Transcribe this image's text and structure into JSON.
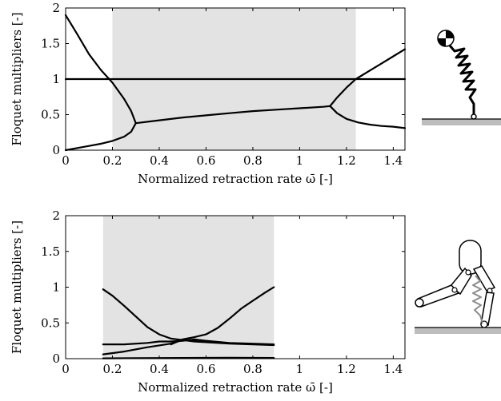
{
  "chart_data": [
    {
      "type": "line",
      "xlabel": "Normalized retraction rate ω̄ [-]",
      "ylabel": "Floquet multipliers [-]",
      "xlim": [
        0,
        1.45
      ],
      "ylim": [
        0,
        2
      ],
      "xticks": [
        "0",
        "0.2",
        "0.4",
        "0.6",
        "0.8",
        "1",
        "1.2",
        "1.4"
      ],
      "yticks": [
        "0",
        "0.5",
        "1",
        "1.5",
        "2"
      ],
      "shaded_region": [
        0.2,
        1.24
      ],
      "series": [
        {
          "x": [
            0,
            1.45
          ],
          "y": [
            1,
            1
          ]
        },
        {
          "x": [
            0,
            0.05,
            0.1,
            0.15,
            0.2,
            0.25,
            0.28,
            0.3
          ],
          "y": [
            1.9,
            1.63,
            1.35,
            1.13,
            0.95,
            0.72,
            0.55,
            0.38
          ]
        },
        {
          "x": [
            0,
            0.05,
            0.1,
            0.15,
            0.2,
            0.25,
            0.28,
            0.3
          ],
          "y": [
            0.0,
            0.03,
            0.06,
            0.09,
            0.13,
            0.19,
            0.26,
            0.38
          ]
        },
        {
          "x": [
            0.3,
            0.4,
            0.5,
            0.6,
            0.7,
            0.8,
            0.9,
            1.0,
            1.1,
            1.13
          ],
          "y": [
            0.38,
            0.42,
            0.46,
            0.49,
            0.52,
            0.55,
            0.57,
            0.59,
            0.61,
            0.62
          ]
        },
        {
          "x": [
            1.13,
            1.16,
            1.2,
            1.24,
            1.3,
            1.35,
            1.4,
            1.45
          ],
          "y": [
            0.62,
            0.74,
            0.88,
            1.0,
            1.12,
            1.22,
            1.32,
            1.42
          ]
        },
        {
          "x": [
            1.13,
            1.16,
            1.2,
            1.25,
            1.3,
            1.35,
            1.4,
            1.45
          ],
          "y": [
            0.62,
            0.52,
            0.44,
            0.39,
            0.36,
            0.34,
            0.33,
            0.31
          ]
        }
      ]
    },
    {
      "type": "line",
      "xlabel": "Normalized retraction rate ω̄ [-]",
      "ylabel": "Floquet multipliers [-]",
      "xlim": [
        0,
        1.45
      ],
      "ylim": [
        0,
        2
      ],
      "xticks": [
        "0",
        "0.2",
        "0.4",
        "0.6",
        "0.8",
        "1",
        "1.2",
        "1.4"
      ],
      "yticks": [
        "0",
        "0.5",
        "1",
        "1.5",
        "2"
      ],
      "shaded_region": [
        0.16,
        0.89
      ],
      "series": [
        {
          "x": [
            0.16,
            0.2,
            0.25,
            0.3,
            0.35,
            0.4,
            0.45,
            0.5,
            0.55,
            0.6
          ],
          "y": [
            0.97,
            0.88,
            0.74,
            0.59,
            0.44,
            0.34,
            0.28,
            0.26,
            0.25,
            0.24
          ]
        },
        {
          "x": [
            0.45,
            0.5,
            0.55,
            0.6,
            0.65,
            0.7,
            0.75,
            0.8,
            0.85,
            0.89
          ],
          "y": [
            0.2,
            0.27,
            0.3,
            0.34,
            0.43,
            0.56,
            0.7,
            0.81,
            0.92,
            1.0
          ]
        },
        {
          "x": [
            0.16,
            0.25,
            0.35,
            0.4,
            0.45,
            0.5,
            0.55,
            0.6,
            0.7,
            0.8,
            0.89
          ],
          "y": [
            0.2,
            0.2,
            0.22,
            0.24,
            0.24,
            0.25,
            0.27,
            0.25,
            0.22,
            0.21,
            0.2
          ]
        },
        {
          "x": [
            0.16,
            0.25,
            0.35,
            0.45,
            0.5,
            0.55,
            0.6,
            0.7,
            0.8,
            0.89
          ],
          "y": [
            0.06,
            0.1,
            0.16,
            0.21,
            0.26,
            0.24,
            0.23,
            0.21,
            0.2,
            0.19
          ]
        },
        {
          "x": [
            0.16,
            0.3,
            0.5,
            0.7,
            0.89
          ],
          "y": [
            0.005,
            0.008,
            0.01,
            0.012,
            0.01
          ]
        }
      ]
    }
  ]
}
